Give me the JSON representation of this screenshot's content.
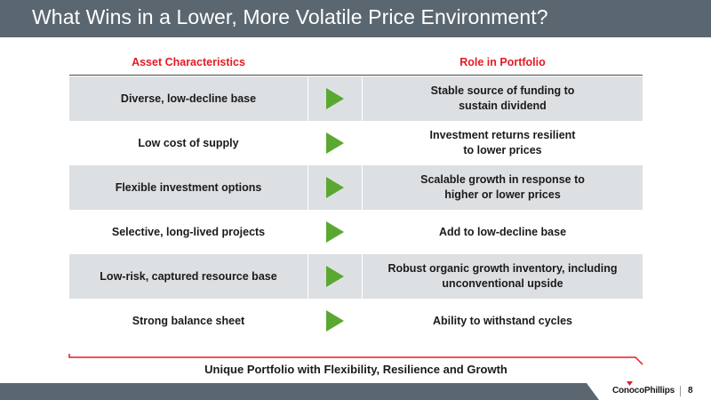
{
  "title": "What Wins in a Lower, More Volatile Price Environment?",
  "table": {
    "headers": {
      "left": "Asset Characteristics",
      "right": "Role in Portfolio"
    },
    "rows": [
      {
        "characteristic": "Diverse, low-decline base",
        "role_line1": "Stable source of funding to",
        "role_line2": "sustain dividend",
        "shaded": true
      },
      {
        "characteristic": "Low cost of supply",
        "role_line1": "Investment returns resilient",
        "role_line2": "to lower prices",
        "shaded": false
      },
      {
        "characteristic": "Flexible investment options",
        "role_line1": "Scalable growth in response to",
        "role_line2": "higher or lower prices",
        "shaded": true
      },
      {
        "characteristic": "Selective, long-lived projects",
        "role_line1": "Add to low-decline base",
        "role_line2": "",
        "shaded": false
      },
      {
        "characteristic": "Low-risk, captured resource base",
        "role_line1": "Robust organic growth inventory, including",
        "role_line2": "unconventional upside",
        "shaded": true
      },
      {
        "characteristic": "Strong balance sheet",
        "role_line1": "Ability to withstand cycles",
        "role_line2": "",
        "shaded": false
      }
    ]
  },
  "footer": {
    "tagline": "Unique Portfolio with Flexibility, Resilience and Growth"
  },
  "brand": {
    "logo_text": "ConocoPhillips",
    "page_number": "8"
  },
  "colors": {
    "header_red": "#e31b23",
    "arrow_green": "#5aa832",
    "slate": "#5b6770",
    "shade": "#dde0e3"
  }
}
